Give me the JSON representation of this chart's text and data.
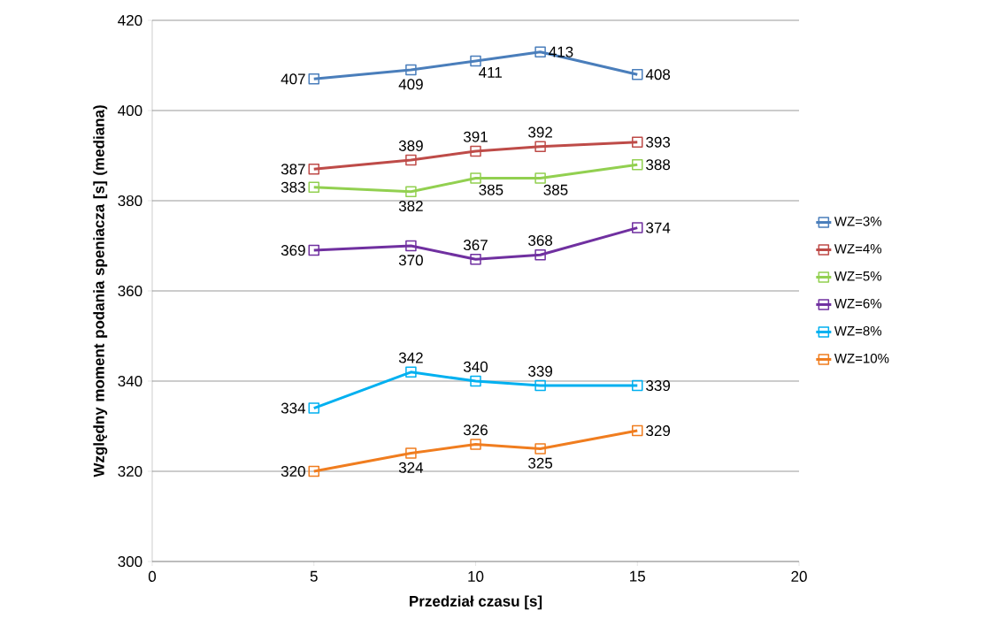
{
  "chart_data": {
    "type": "line",
    "xlabel": "Przedział czasu [s]",
    "ylabel": "Względny moment podania speniacza [s] (mediana)",
    "x": [
      5,
      8,
      10,
      12,
      15
    ],
    "series": [
      {
        "name": "WZ=3%",
        "color": "#4a7ebb",
        "values": [
          407,
          409,
          411,
          413,
          408
        ]
      },
      {
        "name": "WZ=4%",
        "color": "#be4b48",
        "values": [
          387,
          389,
          391,
          392,
          393
        ]
      },
      {
        "name": "WZ=5%",
        "color": "#92d050",
        "values": [
          383,
          382,
          385,
          385,
          388
        ]
      },
      {
        "name": "WZ=6%",
        "color": "#7030a0",
        "values": [
          369,
          370,
          367,
          368,
          374
        ]
      },
      {
        "name": "WZ=8%",
        "color": "#00b0f0",
        "values": [
          334,
          342,
          340,
          339,
          339
        ]
      },
      {
        "name": "WZ=10%",
        "color": "#f07d1f",
        "values": [
          320,
          324,
          326,
          325,
          329
        ]
      }
    ],
    "xlim": [
      0,
      20
    ],
    "xticks": [
      0,
      5,
      10,
      15,
      20
    ],
    "ylim": [
      300,
      420
    ],
    "yticks": [
      300,
      320,
      340,
      360,
      380,
      400,
      420
    ],
    "grid": "y",
    "legend": "right",
    "marker": "square",
    "line_style": "solid",
    "data_labels": true
  }
}
